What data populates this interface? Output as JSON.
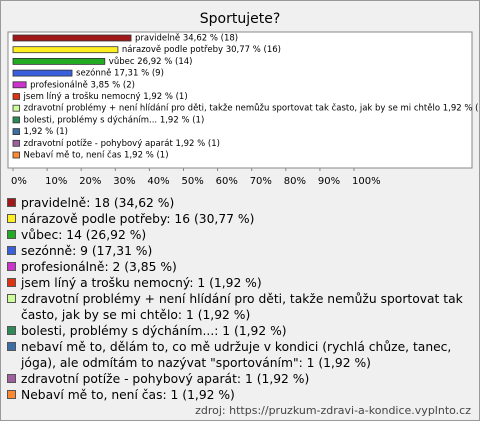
{
  "chart_data": {
    "type": "hbar",
    "title": "Sportujete?",
    "values": [
      34.62,
      30.77,
      26.92,
      17.31,
      3.85,
      1.92,
      1.92,
      1.92,
      1.92,
      1.92,
      1.92
    ],
    "value_labels": [
      "pravidelně 34,62 % (18)",
      "nárazově podle potřeby 30,77 % (16)",
      "vůbec 26,92 % (14)",
      "sezónně 17,31 % (9)",
      "profesionálně 3,85 % (2)",
      "jsem líný a trošku nemocný 1,92 % (1)",
      "zdravotní problémy + není hlídání pro děti, takže nemůžu sportovat tak často, jak by se mi chtělo 1,92 % (1)",
      "bolesti, problémy s dýcháním... 1,92 % (1)",
      "1,92 % (1)",
      "zdravotní potíže - pohybový aparát 1,92 % (1)",
      "Nebaví mě to, není čas 1,92 % (1)"
    ],
    "colors": [
      "#a01818",
      "#ffee22",
      "#22aa22",
      "#3a5fdd",
      "#cc33cc",
      "#dd3311",
      "#ccff99",
      "#2e8b57",
      "#3a6ea5",
      "#a060a0",
      "#ff8833"
    ],
    "legend": [
      "pravidelně: 18 (34,62 %)",
      "nárazově podle potřeby: 16 (30,77 %)",
      "vůbec: 14 (26,92 %)",
      "sezónně: 9 (17,31 %)",
      "profesionálně: 2 (3,85 %)",
      "jsem líný a trošku nemocný: 1 (1,92 %)",
      "zdravotní problémy + není hlídání pro děti, takže nemůžu sportovat tak často, jak by se mi chtělo: 1 (1,92 %)",
      "bolesti, problémy s dýcháním...: 1 (1,92 %)",
      "nebaví mě to, dělám to, co mě udržuje v kondici (rychlá chůze, tanec, jóga), ale odmítám to nazývat \"sportováním\": 1 (1,92 %)",
      "zdravotní potíže - pohybový aparát: 1 (1,92 %)",
      "Nebaví mě to, není čas: 1 (1,92 %)"
    ],
    "xlim": [
      0,
      100
    ],
    "xticks": [
      {
        "value": 0,
        "label": "0%"
      },
      {
        "value": 10,
        "label": "10%"
      },
      {
        "value": 20,
        "label": "20%"
      },
      {
        "value": 30,
        "label": "30%"
      },
      {
        "value": 40,
        "label": "40%"
      },
      {
        "value": 50,
        "label": "50%"
      },
      {
        "value": 60,
        "label": "60%"
      },
      {
        "value": 70,
        "label": "70%"
      },
      {
        "value": 80,
        "label": "80%"
      },
      {
        "value": 90,
        "label": "90%"
      },
      {
        "value": 100,
        "label": "100%"
      }
    ],
    "source": "zdroj: https://pruzkum-zdravi-a-kondice.vyplnto.cz"
  }
}
